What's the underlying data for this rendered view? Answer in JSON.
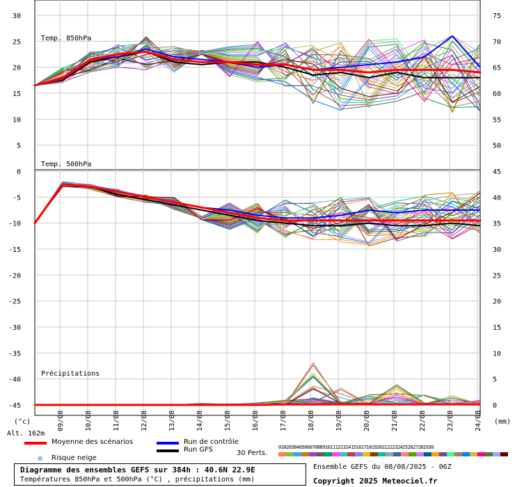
{
  "panels": {
    "t850_label": "Temp. 850hPa",
    "t500_label": "Temp. 500hPa",
    "precip_label": "Précipitations"
  },
  "axes": {
    "left_unit": "(°c)",
    "right_unit": "(mm)",
    "altitude": "Alt. 162m",
    "left_ticks": [
      30,
      25,
      20,
      15,
      10,
      5,
      0,
      -5,
      -10,
      -15,
      -20,
      -25,
      -30,
      -35,
      -40,
      -45
    ],
    "right_ticks": [
      75,
      70,
      65,
      60,
      55,
      50,
      45,
      40,
      35,
      30,
      25,
      20,
      15,
      10,
      5,
      0
    ],
    "dates": [
      "09/08",
      "10/08",
      "11/08",
      "12/08",
      "13/08",
      "14/08",
      "15/08",
      "16/08",
      "17/08",
      "18/08",
      "19/08",
      "20/08",
      "21/08",
      "22/08",
      "23/08",
      "24/08"
    ]
  },
  "legend": {
    "mean": "Moyenne des scénarios",
    "control": "Run de contrôle",
    "gfs": "Run GFS",
    "snow": "Risque neige",
    "perts": "30 Perts.",
    "pert_numbers": "010203040506070809101112131415161718192021222324252627282930",
    "mean_color": "#ff0000",
    "control_color": "#0000ff",
    "gfs_color": "#000000"
  },
  "caption": {
    "title": "Diagramme des ensembles GEFS sur 384h : 40.6N 22.9E",
    "subtitle": "Températures 850hPa et 500hPa (°C) , précipitations (mm)",
    "run": "Ensemble GEFS du 08/08/2025 - 06Z",
    "copyright": "Copyright 2025 Meteociel.fr"
  },
  "pert_colors": [
    "#ff8040",
    "#80c040",
    "#40a0ff",
    "#c08000",
    "#a040c0",
    "#606060",
    "#00a060",
    "#ff40ff",
    "#40c0c0",
    "#c04040",
    "#8080ff",
    "#e0c000",
    "#804000",
    "#00c0a0",
    "#a0a0a0",
    "#4060a0",
    "#ff8080",
    "#60a000",
    "#c080ff",
    "#006080",
    "#ffa000",
    "#8040a0",
    "#40ff80",
    "#a08060",
    "#0080ff",
    "#c0c040",
    "#ff0080",
    "#408040",
    "#a0a0ff",
    "#600000"
  ],
  "chart_data": {
    "type": "line",
    "x": [
      "08/08 06Z",
      "09/08",
      "10/08",
      "11/08",
      "12/08",
      "13/08",
      "14/08",
      "15/08",
      "16/08",
      "17/08",
      "18/08",
      "19/08",
      "20/08",
      "21/08",
      "22/08",
      "23/08",
      "24/08"
    ],
    "t850": {
      "ylabel": "(°c)",
      "mean": [
        16.5,
        17.8,
        21.5,
        22.5,
        23.0,
        21.5,
        21.0,
        21.0,
        20.5,
        20.5,
        19.5,
        19.5,
        19.0,
        19.5,
        19.5,
        19.5,
        19.0
      ],
      "control": [
        16.5,
        18.0,
        21.5,
        22.0,
        23.5,
        22.0,
        21.5,
        21.0,
        20.0,
        20.5,
        19.5,
        20.0,
        20.5,
        21.0,
        22.0,
        26.0,
        20.0
      ],
      "gfs": [
        16.5,
        17.5,
        21.0,
        22.0,
        23.0,
        21.0,
        20.5,
        21.0,
        21.0,
        20.0,
        18.5,
        19.0,
        18.0,
        19.0,
        18.0,
        18.0,
        18.0
      ],
      "envelope_max": [
        16.5,
        20.0,
        23.0,
        24.5,
        26.0,
        24.0,
        23.5,
        24.0,
        25.0,
        25.0,
        24.5,
        25.0,
        25.5,
        25.5,
        25.5,
        26.5,
        25.0
      ],
      "envelope_min": [
        16.5,
        17.0,
        19.0,
        20.0,
        19.5,
        19.0,
        18.5,
        18.0,
        17.0,
        16.0,
        13.0,
        11.5,
        10.5,
        13.0,
        13.0,
        11.0,
        11.0
      ]
    },
    "t500": {
      "mean": [
        -10.0,
        -2.5,
        -3.0,
        -4.0,
        -5.0,
        -6.0,
        -7.0,
        -8.0,
        -9.0,
        -9.5,
        -9.5,
        -9.5,
        -9.5,
        -9.5,
        -9.5,
        -9.5,
        -9.5
      ],
      "control": [
        -10.0,
        -2.5,
        -3.0,
        -4.0,
        -5.0,
        -6.0,
        -7.0,
        -7.5,
        -8.5,
        -9.0,
        -9.0,
        -8.5,
        -7.5,
        -8.0,
        -7.5,
        -7.5,
        -7.5
      ],
      "gfs": [
        -10.0,
        -2.5,
        -3.0,
        -4.5,
        -5.5,
        -6.5,
        -7.5,
        -8.5,
        -9.5,
        -10.0,
        -10.5,
        -10.5,
        -10.0,
        -10.5,
        -10.5,
        -10.0,
        -10.5
      ],
      "envelope_max": [
        -10.0,
        -2.0,
        -2.5,
        -3.5,
        -4.5,
        -5.0,
        -5.5,
        -6.0,
        -6.0,
        -5.5,
        -6.0,
        -5.0,
        -5.0,
        -5.5,
        -4.5,
        -4.0,
        -3.5
      ],
      "envelope_min": [
        -10.0,
        -3.0,
        -3.5,
        -5.0,
        -6.0,
        -7.5,
        -9.5,
        -11.5,
        -12.0,
        -13.0,
        -13.5,
        -14.0,
        -14.5,
        -13.5,
        -13.0,
        -13.5,
        -12.5
      ]
    },
    "precip": {
      "ylabel": "(mm)",
      "mean": [
        0,
        0,
        0,
        0,
        0,
        0,
        0,
        0,
        0,
        0.1,
        0.1,
        0.1,
        0.1,
        0.1,
        0.1,
        0.1,
        0.1
      ],
      "max": [
        0,
        0,
        0,
        0,
        0,
        0,
        0.3,
        0.2,
        0.5,
        1.0,
        9.0,
        3.5,
        2.0,
        4.0,
        2.0,
        2.0,
        1.0
      ]
    },
    "ylim_left": [
      -45,
      30
    ],
    "ylim_right": [
      0,
      75
    ]
  }
}
